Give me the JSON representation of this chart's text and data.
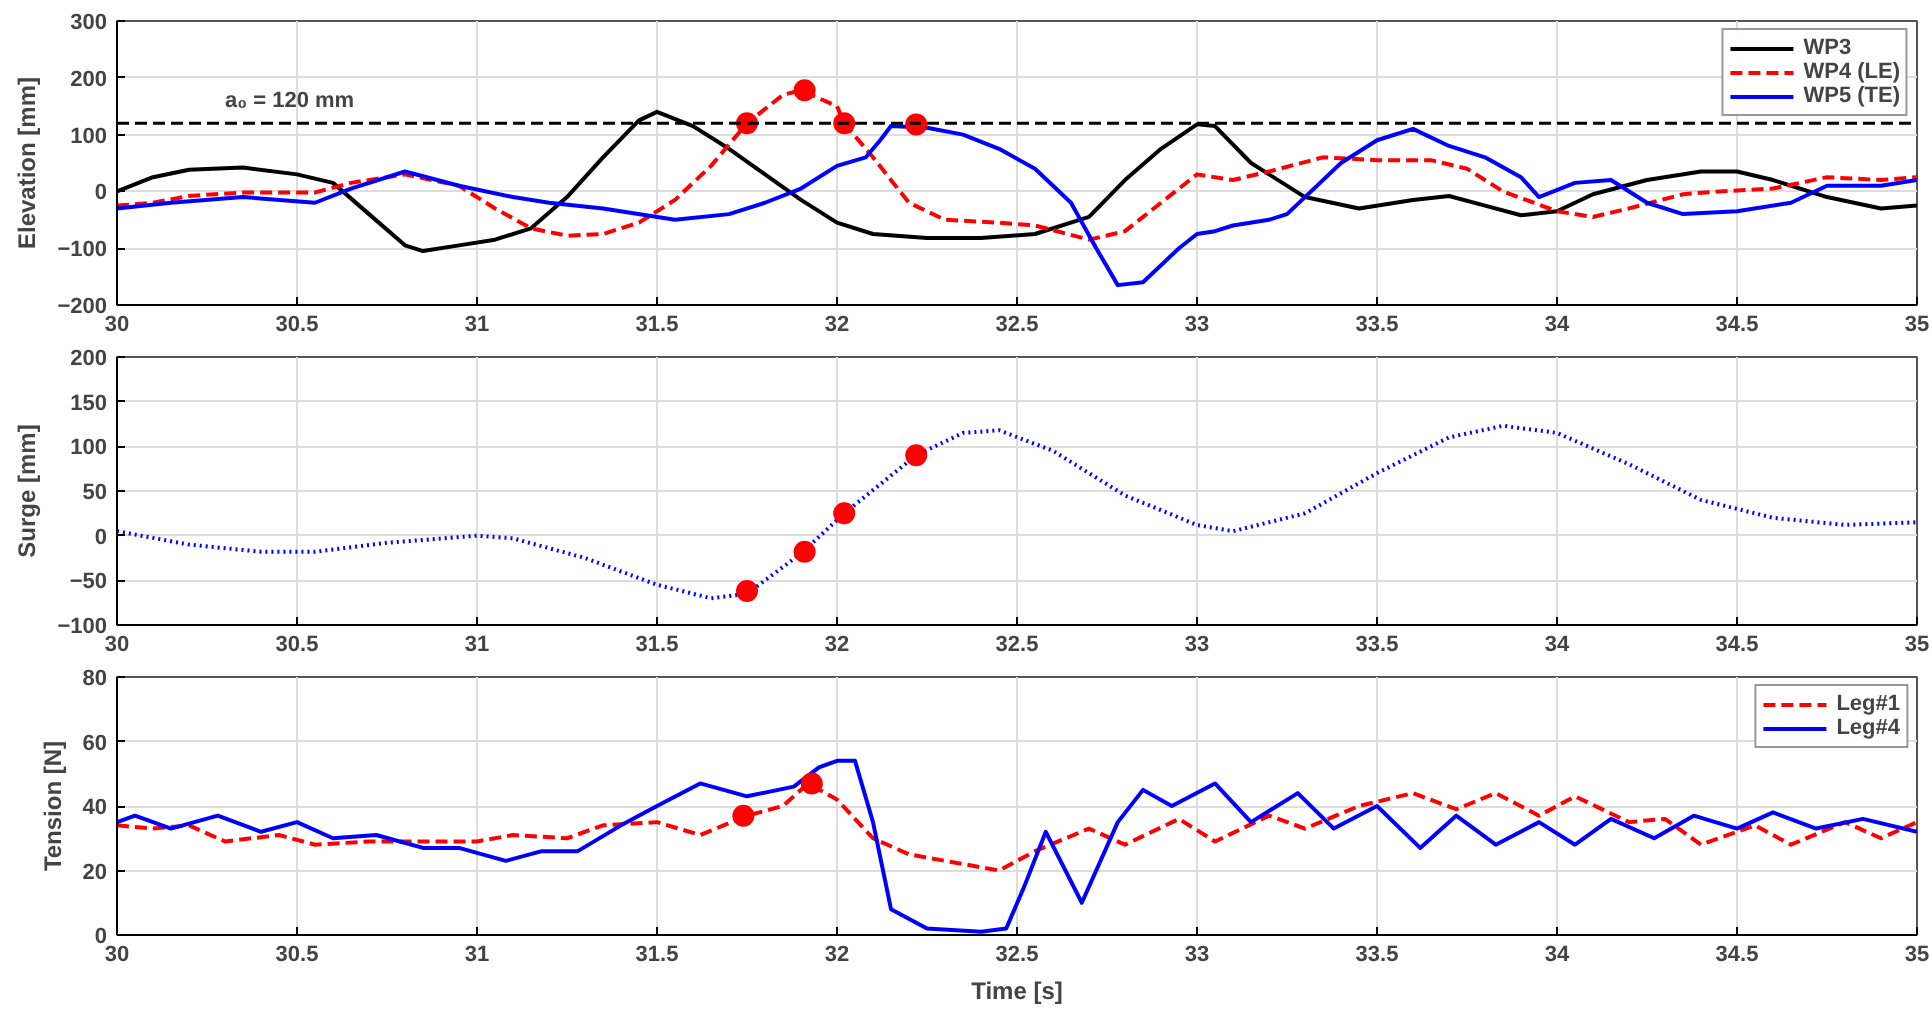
{
  "chart_data": [
    {
      "type": "line",
      "ylabel": "Elevation [mm]",
      "xlim": [
        30,
        35
      ],
      "xticks": [
        30,
        30.5,
        31,
        31.5,
        32,
        32.5,
        33,
        33.5,
        34,
        34.5,
        35
      ],
      "ylim": [
        -200,
        300
      ],
      "yticks": [
        -200,
        -100,
        0,
        100,
        200,
        300
      ],
      "grid": true,
      "legend": "top right",
      "ref_lines": [
        {
          "axis": "y",
          "value": 120,
          "label": "a₀ = 120 mm",
          "color": "#000000",
          "line_style": "dashed"
        }
      ],
      "series": [
        {
          "name": "WP3",
          "color": "#000000",
          "line_style": "solid",
          "x": [
            30,
            30.1,
            30.2,
            30.35,
            30.5,
            30.6,
            30.7,
            30.8,
            30.85,
            30.95,
            31.05,
            31.15,
            31.25,
            31.35,
            31.45,
            31.5,
            31.6,
            31.7,
            31.8,
            31.9,
            32.0,
            32.1,
            32.25,
            32.4,
            32.55,
            32.7,
            32.8,
            32.9,
            33.0,
            33.05,
            33.15,
            33.3,
            33.45,
            33.6,
            33.7,
            33.8,
            33.9,
            34.0,
            34.1,
            34.25,
            34.4,
            34.5,
            34.6,
            34.75,
            34.9,
            35
          ],
          "values": [
            0,
            25,
            38,
            42,
            30,
            15,
            -40,
            -95,
            -105,
            -95,
            -85,
            -65,
            -10,
            60,
            125,
            140,
            115,
            75,
            30,
            -15,
            -55,
            -75,
            -82,
            -82,
            -75,
            -45,
            20,
            75,
            118,
            115,
            50,
            -10,
            -30,
            -15,
            -8,
            -25,
            -42,
            -35,
            -5,
            20,
            35,
            35,
            20,
            -10,
            -30,
            -25
          ]
        },
        {
          "name": "WP4 (LE)",
          "color": "#ff0000",
          "line_style": "dashed",
          "x": [
            30,
            30.1,
            30.2,
            30.35,
            30.55,
            30.65,
            30.8,
            30.95,
            31.05,
            31.15,
            31.25,
            31.35,
            31.45,
            31.55,
            31.65,
            31.75,
            31.85,
            31.9,
            32.0,
            32.02,
            32.1,
            32.2,
            32.3,
            32.45,
            32.55,
            32.7,
            32.8,
            32.9,
            33.0,
            33.1,
            33.2,
            33.35,
            33.5,
            33.65,
            33.75,
            33.85,
            34.0,
            34.1,
            34.2,
            34.35,
            34.45,
            34.6,
            34.75,
            34.9,
            35
          ],
          "values": [
            -25,
            -20,
            -8,
            -2,
            -2,
            15,
            30,
            10,
            -30,
            -65,
            -78,
            -75,
            -55,
            -15,
            45,
            120,
            170,
            178,
            150,
            120,
            60,
            -20,
            -50,
            -55,
            -60,
            -85,
            -70,
            -20,
            30,
            20,
            35,
            60,
            55,
            55,
            40,
            0,
            -35,
            -45,
            -30,
            -5,
            0,
            5,
            25,
            20,
            25
          ]
        },
        {
          "name": "WP5 (TE)",
          "color": "#0000ff",
          "line_style": "solid",
          "x": [
            30,
            30.15,
            30.35,
            30.55,
            30.65,
            30.8,
            30.95,
            31.1,
            31.2,
            31.35,
            31.55,
            31.7,
            31.8,
            31.9,
            32.0,
            32.08,
            32.12,
            32.15,
            32.25,
            32.35,
            32.45,
            32.55,
            32.65,
            32.72,
            32.78,
            32.85,
            32.95,
            33.0,
            33.05,
            33.1,
            33.2,
            33.25,
            33.3,
            33.4,
            33.5,
            33.6,
            33.7,
            33.8,
            33.9,
            33.95,
            34.05,
            34.15,
            34.25,
            34.35,
            34.5,
            34.65,
            34.75,
            34.9,
            35
          ],
          "values": [
            -30,
            -20,
            -10,
            -20,
            5,
            35,
            10,
            -10,
            -20,
            -30,
            -50,
            -40,
            -20,
            5,
            45,
            60,
            90,
            115,
            112,
            100,
            75,
            40,
            -20,
            -100,
            -165,
            -160,
            -100,
            -75,
            -70,
            -60,
            -50,
            -40,
            -10,
            50,
            90,
            110,
            80,
            60,
            25,
            -10,
            15,
            20,
            -20,
            -40,
            -35,
            -20,
            10,
            10,
            20
          ]
        },
        {
          "type": "scatter",
          "marker": "circle",
          "color": "#ff0000",
          "x": [
            31.75,
            31.91,
            32.02,
            32.22
          ],
          "values": [
            120,
            178,
            120,
            118
          ]
        }
      ]
    },
    {
      "type": "line",
      "ylabel": "Surge [mm]",
      "xlim": [
        30,
        35
      ],
      "xticks": [
        30,
        30.5,
        31,
        31.5,
        32,
        32.5,
        33,
        33.5,
        34,
        34.5,
        35
      ],
      "ylim": [
        -100,
        200
      ],
      "yticks": [
        -100,
        -50,
        0,
        50,
        100,
        150,
        200
      ],
      "grid": true,
      "series": [
        {
          "color": "#0000ff",
          "line_style": "dotted",
          "x": [
            30,
            30.2,
            30.4,
            30.55,
            30.75,
            31.0,
            31.1,
            31.3,
            31.5,
            31.65,
            31.75,
            31.9,
            32.02,
            32.22,
            32.35,
            32.45,
            32.6,
            32.8,
            33.0,
            33.1,
            33.3,
            33.5,
            33.7,
            33.85,
            34.0,
            34.2,
            34.4,
            34.6,
            34.8,
            35
          ],
          "values": [
            5,
            -10,
            -18,
            -18,
            -8,
            0,
            -3,
            -25,
            -55,
            -70,
            -65,
            -20,
            25,
            90,
            115,
            118,
            95,
            45,
            12,
            5,
            25,
            70,
            110,
            123,
            115,
            80,
            40,
            20,
            12,
            15
          ]
        },
        {
          "type": "scatter",
          "marker": "circle",
          "color": "#ff0000",
          "x": [
            31.75,
            31.91,
            32.02,
            32.22
          ],
          "values": [
            -62,
            -18,
            25,
            90
          ]
        }
      ]
    },
    {
      "type": "line",
      "xlabel": "Time [s]",
      "ylabel": "Tension [N]",
      "xlim": [
        30,
        35
      ],
      "xticks": [
        30,
        30.5,
        31,
        31.5,
        32,
        32.5,
        33,
        33.5,
        34,
        34.5,
        35
      ],
      "ylim": [
        0,
        80
      ],
      "yticks": [
        0,
        20,
        40,
        60,
        80
      ],
      "grid": true,
      "legend": "top right",
      "series": [
        {
          "name": "Leg#1",
          "color": "#ff0000",
          "line_style": "dashed",
          "x": [
            30,
            30.1,
            30.2,
            30.3,
            30.45,
            30.55,
            30.7,
            30.85,
            31.0,
            31.1,
            31.25,
            31.35,
            31.5,
            31.62,
            31.75,
            31.85,
            31.92,
            32.0,
            32.1,
            32.2,
            32.35,
            32.45,
            32.55,
            32.7,
            32.8,
            32.95,
            33.05,
            33.2,
            33.3,
            33.45,
            33.6,
            33.72,
            33.83,
            33.95,
            34.05,
            34.2,
            34.3,
            34.4,
            34.55,
            34.65,
            34.8,
            34.9,
            35
          ],
          "values": [
            34,
            33,
            34,
            29,
            31,
            28,
            29,
            29,
            29,
            31,
            30,
            34,
            35,
            31,
            37,
            40,
            47,
            42,
            30,
            25,
            22,
            20,
            26,
            33,
            28,
            36,
            29,
            37,
            33,
            40,
            44,
            39,
            44,
            37,
            43,
            35,
            36,
            28,
            34,
            28,
            35,
            30,
            35
          ]
        },
        {
          "name": "Leg#4",
          "color": "#0000ff",
          "line_style": "solid",
          "x": [
            30,
            30.05,
            30.15,
            30.28,
            30.4,
            30.5,
            30.6,
            30.72,
            30.85,
            30.95,
            31.08,
            31.18,
            31.28,
            31.4,
            31.5,
            31.62,
            31.75,
            31.88,
            31.95,
            32.0,
            32.05,
            32.1,
            32.15,
            32.25,
            32.4,
            32.47,
            32.52,
            32.58,
            32.68,
            32.78,
            32.85,
            32.93,
            33.05,
            33.15,
            33.28,
            33.38,
            33.5,
            33.62,
            33.72,
            33.83,
            33.95,
            34.05,
            34.15,
            34.27,
            34.38,
            34.5,
            34.6,
            34.72,
            34.85,
            35
          ],
          "values": [
            35,
            37,
            33,
            37,
            32,
            35,
            30,
            31,
            27,
            27,
            23,
            26,
            26,
            34,
            40,
            47,
            43,
            46,
            52,
            54,
            54,
            35,
            8,
            2,
            1,
            2,
            15,
            32,
            10,
            35,
            45,
            40,
            47,
            35,
            44,
            33,
            40,
            27,
            37,
            28,
            35,
            28,
            36,
            30,
            37,
            33,
            38,
            33,
            36,
            32
          ]
        },
        {
          "type": "scatter",
          "marker": "circle",
          "color": "#ff0000",
          "x": [
            31.74,
            31.93
          ],
          "values": [
            37,
            47
          ]
        }
      ]
    }
  ]
}
